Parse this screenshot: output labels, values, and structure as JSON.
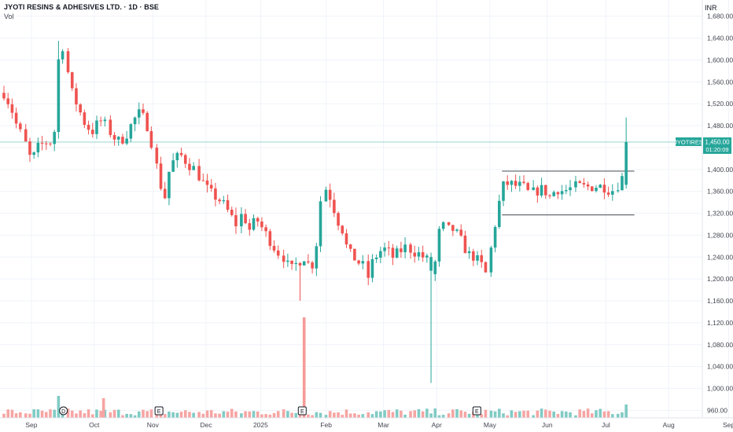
{
  "header": {
    "title": "JYOTI RESINS & ADHESIVES LTD. · 1D · BSE",
    "volume_label": "Vol"
  },
  "currency": "INR",
  "price_label": {
    "ticker": "JYOTIRES",
    "price": "1,450.00",
    "countdown": "01:20:09"
  },
  "colors": {
    "up": "#26a69a",
    "down": "#ef5350",
    "vol_up": "#80cbc4",
    "vol_down": "#f6a5a3",
    "spike_down": "#f59b97",
    "grid": "#f0f3fa",
    "hline": "#9ad4d0",
    "text": "#131722",
    "axis_text": "#434651"
  },
  "events": [
    {
      "letter": "D",
      "shape": "circle",
      "x_index": 39
    },
    {
      "letter": "E",
      "shape": "square",
      "x_index": 109
    },
    {
      "letter": "E",
      "shape": "square",
      "x_index": 214
    },
    {
      "letter": "E",
      "shape": "square",
      "x_index": 342
    }
  ],
  "chart_data": {
    "type": "candlestick",
    "y_ticks": [
      960,
      1000,
      1040,
      1080,
      1120,
      1160,
      1200,
      1240,
      1280,
      1320,
      1360,
      1400,
      1440,
      1480,
      1520,
      1560,
      1600,
      1640,
      1680
    ],
    "y_tick_labels": [
      "960.00",
      "1,000.00",
      "1,040.00",
      "1,080.00",
      "1,120.00",
      "1,160.00",
      "1,200.00",
      "1,240.00",
      "1,280.00",
      "1,320.00",
      "1,360.00",
      "1,400.00",
      "",
      "1,480.00",
      "1,520.00",
      "1,560.00",
      "1,600.00",
      "1,640.00",
      "1,680.00"
    ],
    "ylim": [
      940,
      1700
    ],
    "x_month_labels": [
      {
        "label": "Sep",
        "index": 4
      },
      {
        "label": "Oct",
        "index": 50
      },
      {
        "label": "Nov",
        "index": 93
      },
      {
        "label": "Dec",
        "index": 132
      },
      {
        "label": "2025",
        "index": 172
      },
      {
        "label": "Feb",
        "index": 220
      },
      {
        "label": "Mar",
        "index": 262
      },
      {
        "label": "Apr",
        "index": 301
      },
      {
        "label": "May",
        "index": 340
      },
      {
        "label": "Jun",
        "index": 382
      },
      {
        "label": "Jul",
        "index": 425
      },
      {
        "label": "Aug",
        "index": 471
      },
      {
        "label": "Sep",
        "index": 515
      }
    ],
    "last_price": 1450,
    "range_box": {
      "start_index": 365,
      "end_index": 462,
      "upper": 1397,
      "lower": 1317
    },
    "anchors": [
      [
        0,
        1540
      ],
      [
        5,
        1515
      ],
      [
        10,
        1475
      ],
      [
        15,
        1455
      ],
      [
        20,
        1415
      ],
      [
        25,
        1440
      ],
      [
        30,
        1450
      ],
      [
        35,
        1450
      ],
      [
        38,
        1480
      ],
      [
        40,
        1600
      ],
      [
        43,
        1625
      ],
      [
        46,
        1590
      ],
      [
        50,
        1540
      ],
      [
        55,
        1510
      ],
      [
        60,
        1480
      ],
      [
        65,
        1470
      ],
      [
        70,
        1490
      ],
      [
        75,
        1480
      ],
      [
        80,
        1460
      ],
      [
        85,
        1450
      ],
      [
        90,
        1465
      ],
      [
        95,
        1490
      ],
      [
        100,
        1505
      ],
      [
        105,
        1480
      ],
      [
        110,
        1430
      ],
      [
        115,
        1370
      ],
      [
        118,
        1350
      ],
      [
        120,
        1390
      ],
      [
        125,
        1420
      ],
      [
        130,
        1425
      ],
      [
        135,
        1410
      ],
      [
        140,
        1400
      ],
      [
        145,
        1380
      ],
      [
        150,
        1360
      ],
      [
        155,
        1350
      ],
      [
        160,
        1340
      ],
      [
        165,
        1320
      ],
      [
        170,
        1300
      ],
      [
        175,
        1320
      ],
      [
        180,
        1290
      ],
      [
        185,
        1310
      ],
      [
        190,
        1290
      ],
      [
        195,
        1270
      ],
      [
        200,
        1250
      ],
      [
        205,
        1240
      ],
      [
        210,
        1215
      ],
      [
        215,
        1230
      ],
      [
        220,
        1240
      ],
      [
        225,
        1220
      ],
      [
        228,
        1240
      ],
      [
        230,
        1290
      ],
      [
        233,
        1370
      ],
      [
        236,
        1365
      ],
      [
        240,
        1345
      ],
      [
        244,
        1310
      ],
      [
        248,
        1290
      ],
      [
        252,
        1250
      ],
      [
        256,
        1240
      ],
      [
        260,
        1230
      ],
      [
        265,
        1220
      ],
      [
        268,
        1195
      ],
      [
        270,
        1230
      ],
      [
        275,
        1250
      ],
      [
        280,
        1255
      ],
      [
        285,
        1240
      ],
      [
        290,
        1250
      ],
      [
        295,
        1260
      ],
      [
        300,
        1250
      ],
      [
        305,
        1245
      ],
      [
        308,
        1238
      ],
      [
        310,
        1235
      ],
      [
        313,
        1210
      ],
      [
        316,
        1230
      ],
      [
        318,
        1270
      ],
      [
        320,
        1300
      ],
      [
        325,
        1290
      ],
      [
        330,
        1290
      ],
      [
        335,
        1270
      ],
      [
        340,
        1245
      ],
      [
        345,
        1240
      ],
      [
        350,
        1225
      ],
      [
        353,
        1210
      ],
      [
        356,
        1240
      ],
      [
        358,
        1270
      ],
      [
        360,
        1300
      ],
      [
        363,
        1340
      ],
      [
        366,
        1370
      ],
      [
        370,
        1375
      ],
      [
        375,
        1370
      ],
      [
        380,
        1370
      ],
      [
        385,
        1355
      ],
      [
        390,
        1360
      ],
      [
        395,
        1365
      ],
      [
        400,
        1350
      ],
      [
        405,
        1365
      ],
      [
        410,
        1360
      ],
      [
        415,
        1365
      ],
      [
        420,
        1370
      ],
      [
        425,
        1368
      ],
      [
        430,
        1368
      ],
      [
        435,
        1370
      ],
      [
        440,
        1368
      ],
      [
        445,
        1360
      ],
      [
        450,
        1372
      ],
      [
        453,
        1385
      ],
      [
        456,
        1450
      ]
    ],
    "special_wicks": [
      {
        "index": 313,
        "low": 1010
      },
      {
        "index": 456,
        "high": 1495
      },
      {
        "index": 41,
        "high": 1635
      },
      {
        "index": 218,
        "low": 1160
      }
    ],
    "volume_spikes": [
      {
        "index": 220,
        "height": 128
      },
      {
        "index": 40,
        "height": 28
      },
      {
        "index": 73,
        "height": 25
      },
      {
        "index": 456,
        "height": 17
      }
    ],
    "n_bars": 457
  }
}
